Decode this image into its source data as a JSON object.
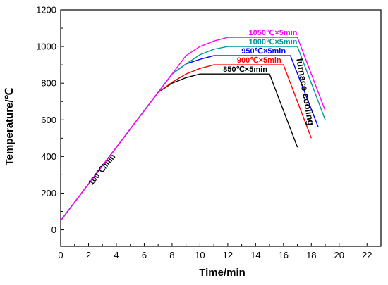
{
  "chart_data": {
    "type": "line",
    "title": "",
    "xlabel": "Time/min",
    "ylabel": "Temperature/℃",
    "xlim": [
      0,
      23
    ],
    "ylim": [
      -90,
      1200
    ],
    "x_ticks": [
      0,
      2,
      4,
      6,
      8,
      10,
      12,
      14,
      16,
      18,
      20,
      22
    ],
    "y_ticks": [
      0,
      200,
      400,
      600,
      800,
      1000,
      1200
    ],
    "grid": false,
    "legend": "none",
    "series": [
      {
        "name": "850℃×5min",
        "color": "#000000",
        "points": [
          [
            0,
            50
          ],
          [
            7,
            750
          ],
          [
            8,
            800
          ],
          [
            9,
            830
          ],
          [
            10,
            850
          ],
          [
            15,
            850
          ],
          [
            17,
            450
          ]
        ]
      },
      {
        "name": "900℃×5min",
        "color": "#ff0000",
        "points": [
          [
            0,
            50
          ],
          [
            7,
            750
          ],
          [
            8,
            805
          ],
          [
            9,
            850
          ],
          [
            10,
            880
          ],
          [
            11,
            900
          ],
          [
            16,
            900
          ],
          [
            18,
            500
          ]
        ]
      },
      {
        "name": "950℃×5min",
        "color": "#0000ff",
        "points": [
          [
            0,
            50
          ],
          [
            7,
            750
          ],
          [
            8,
            850
          ],
          [
            9,
            905
          ],
          [
            10,
            930
          ],
          [
            11,
            950
          ],
          [
            16.5,
            950
          ],
          [
            18.5,
            560
          ]
        ]
      },
      {
        "name": "1000℃×5min",
        "color": "#009999",
        "points": [
          [
            0,
            50
          ],
          [
            7,
            750
          ],
          [
            8,
            850
          ],
          [
            9,
            905
          ],
          [
            10,
            955
          ],
          [
            11,
            985
          ],
          [
            12,
            1000
          ],
          [
            17,
            1000
          ],
          [
            19,
            600
          ]
        ]
      },
      {
        "name": "1050℃×5min",
        "color": "#ff00ff",
        "points": [
          [
            0,
            50
          ],
          [
            7,
            750
          ],
          [
            8,
            850
          ],
          [
            9,
            950
          ],
          [
            10,
            1000
          ],
          [
            11,
            1030
          ],
          [
            12,
            1050
          ],
          [
            17,
            1050
          ],
          [
            19,
            650
          ]
        ]
      }
    ],
    "annotations": [
      {
        "text": "100℃/min",
        "x": 3.1,
        "y": 320,
        "rotate": -51
      },
      {
        "text": "furnace cooling",
        "x": 17.35,
        "y": 750,
        "rotate": 80
      }
    ]
  }
}
